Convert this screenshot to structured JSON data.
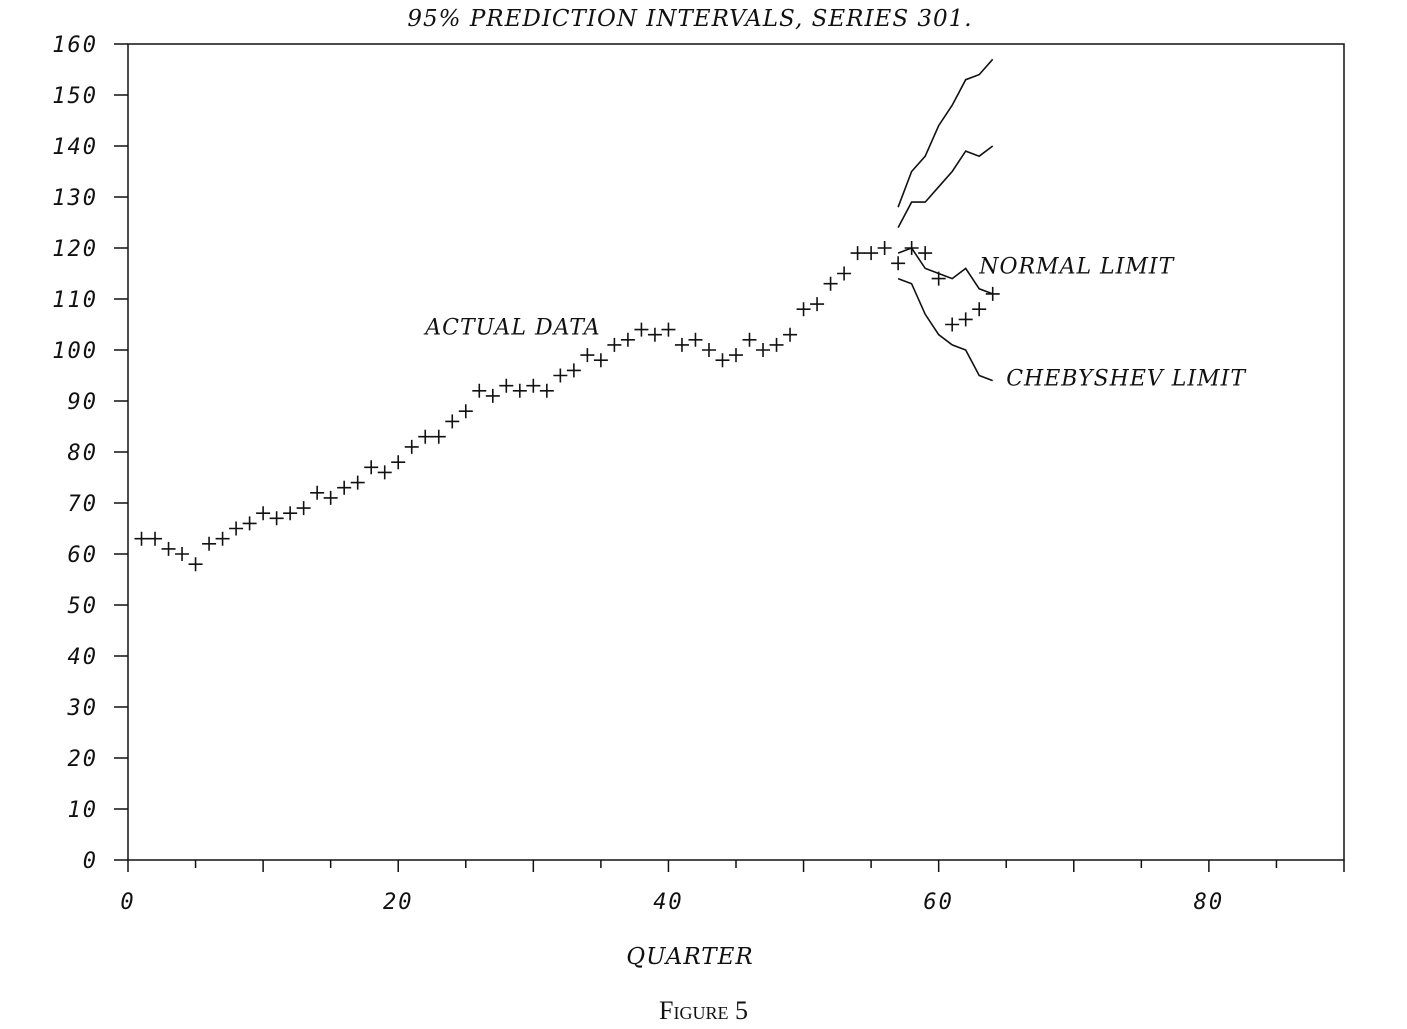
{
  "figure_caption": "Figure 5",
  "chart_data": {
    "type": "scatter",
    "title": "95% PREDICTION INTERVALS, SERIES 301.",
    "xlabel": "QUARTER",
    "ylabel": "",
    "xlim": [
      0,
      90
    ],
    "ylim": [
      0,
      160
    ],
    "x_ticks": [
      0,
      20,
      40,
      60,
      80
    ],
    "x_tick_labels": [
      "0",
      "20",
      "40",
      "60",
      "80"
    ],
    "y_ticks": [
      0,
      10,
      20,
      30,
      40,
      50,
      60,
      70,
      80,
      90,
      100,
      110,
      120,
      130,
      140,
      150,
      160
    ],
    "y_tick_labels": [
      "0",
      "10",
      "20",
      "30",
      "40",
      "50",
      "60",
      "70",
      "80",
      "90",
      "100",
      "110",
      "120",
      "130",
      "140",
      "150",
      "160"
    ],
    "grid": false,
    "annotations": [
      {
        "text": "ACTUAL DATA",
        "x": 22,
        "y": 103
      },
      {
        "text": "NORMAL LIMIT",
        "x": 63,
        "y": 115
      },
      {
        "text": "CHEBYSHEV LIMIT",
        "x": 65,
        "y": 93
      }
    ],
    "series": [
      {
        "marker": "plus",
        "x": [
          1,
          2,
          3,
          4,
          5,
          6,
          7,
          8,
          9,
          10,
          11,
          12,
          13,
          14,
          15,
          16,
          17,
          18,
          19,
          20,
          21,
          22,
          23,
          24,
          25,
          26,
          27,
          28,
          29,
          30,
          31,
          32,
          33,
          34,
          35,
          36,
          37,
          38,
          39,
          40,
          41,
          42,
          43,
          44,
          45,
          46,
          47,
          48,
          49,
          50,
          51,
          52,
          53,
          54,
          55,
          56,
          57,
          58,
          59,
          60,
          61,
          62,
          63,
          64
        ],
        "y": [
          63,
          63,
          61,
          60,
          58,
          62,
          63,
          65,
          66,
          68,
          67,
          68,
          69,
          72,
          71,
          73,
          74,
          77,
          76,
          78,
          81,
          83,
          83,
          86,
          88,
          92,
          91,
          93,
          92,
          93,
          92,
          95,
          96,
          99,
          98,
          101,
          102,
          104,
          103,
          104,
          101,
          102,
          100,
          98,
          99,
          102,
          100,
          101,
          103,
          108,
          109,
          113,
          115,
          119,
          119,
          120,
          117,
          120,
          119,
          114,
          105,
          106,
          108,
          111
        ]
      },
      {
        "style": "line",
        "x": [
          57,
          58,
          59,
          60,
          61,
          62,
          63,
          64
        ],
        "y": [
          128,
          135,
          138,
          144,
          148,
          153,
          154,
          157
        ]
      },
      {
        "style": "line",
        "x": [
          57,
          58,
          59,
          60,
          61,
          62,
          63,
          64
        ],
        "y": [
          124,
          129,
          129,
          132,
          135,
          139,
          138,
          140
        ]
      },
      {
        "style": "line",
        "x": [
          57,
          58,
          59,
          60,
          61,
          62,
          63,
          64
        ],
        "y": [
          119,
          120,
          116,
          115,
          114,
          116,
          112,
          111
        ]
      },
      {
        "style": "line",
        "x": [
          57,
          58,
          59,
          60,
          61,
          62,
          63,
          64
        ],
        "y": [
          114,
          113,
          107,
          103,
          101,
          100,
          95,
          94
        ]
      }
    ]
  }
}
